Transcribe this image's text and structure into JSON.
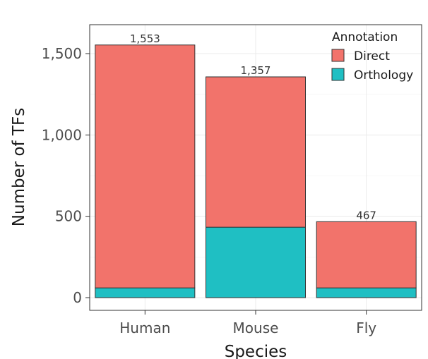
{
  "chart_data": {
    "type": "bar",
    "stacked": true,
    "xlabel": "Species",
    "ylabel": "Number of TFs",
    "categories": [
      "Human",
      "Mouse",
      "Fly"
    ],
    "series": [
      {
        "name": "Orthology",
        "color": "#1fbfc3",
        "values": [
          60,
          433,
          60
        ]
      },
      {
        "name": "Direct",
        "color": "#f2736b",
        "values": [
          1493,
          924,
          407
        ]
      }
    ],
    "totals": [
      1553,
      1357,
      467
    ],
    "total_labels": [
      "1,553",
      "1,357",
      "467"
    ],
    "ylim": [
      0,
      1650
    ],
    "yticks": [
      0,
      500,
      1000,
      1500
    ],
    "ytick_labels": [
      "0",
      "500",
      "1,000",
      "1,500"
    ],
    "grid": true,
    "legend": {
      "title": "Annotation",
      "placement": "top-right",
      "entries": [
        {
          "name": "Direct",
          "color": "#f2736b"
        },
        {
          "name": "Orthology",
          "color": "#1fbfc3"
        }
      ]
    }
  }
}
